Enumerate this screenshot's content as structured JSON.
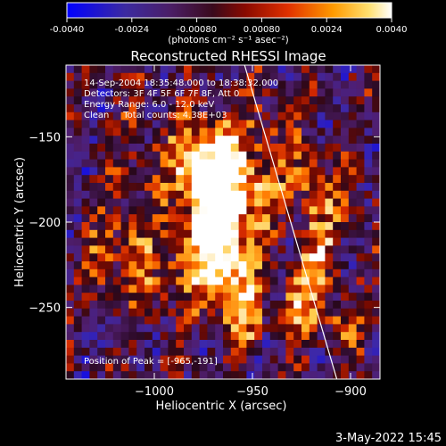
{
  "colorbar": {
    "ticks": [
      "-0.0040",
      "-0.0024",
      "-0.00080",
      "0.00080",
      "0.0024",
      "0.0040"
    ],
    "tick_values": [
      -0.004,
      -0.0024,
      -0.0008,
      0.0008,
      0.0024,
      0.004
    ],
    "range": [
      -0.004,
      0.004
    ],
    "units_label": "(photons cm⁻² s⁻¹ asec⁻²)"
  },
  "chart_data": {
    "type": "heatmap",
    "title": "Reconstructed RHESSI Image",
    "xlabel": "Heliocentric X (arcsec)",
    "ylabel": "Heliocentric Y (arcsec)",
    "xlim": [
      -1045,
      -885
    ],
    "ylim": [
      -292,
      -108
    ],
    "x_ticks": [
      -1000,
      -950,
      -900
    ],
    "x_tick_labels": [
      "−1000",
      "−950",
      "−900"
    ],
    "y_ticks": [
      -150,
      -200,
      -250
    ],
    "y_tick_labels": [
      "−150",
      "−200",
      "−250"
    ],
    "annotations": [
      "14-Sep-2004 18:35:48.000 to 18:38:32.000",
      "Detectors: 3F 4F 5F 6F 7F 8F, Att 0",
      "Energy Range: 6.0 - 12.0 keV",
      "Clean     Total counts: 4.38E+03"
    ],
    "peak_label": "Position of Peak = [-965,-191]",
    "peak": [
      -965,
      -191
    ],
    "limb_line": [
      [
        -954,
        -108
      ],
      [
        -907,
        -292
      ]
    ]
  },
  "footer": {
    "date": "3-May-2022 15:45"
  }
}
